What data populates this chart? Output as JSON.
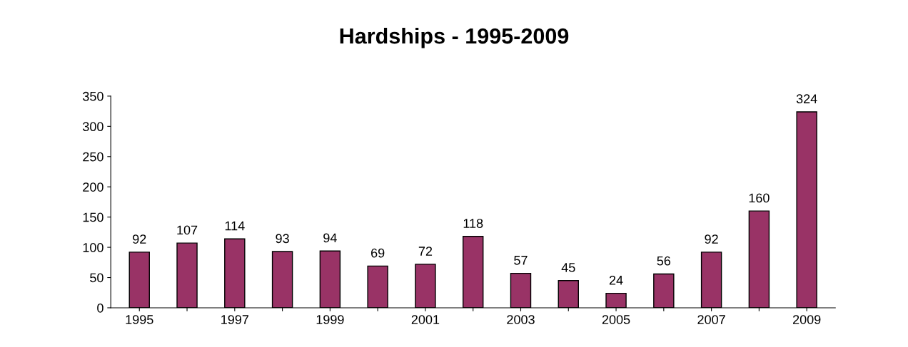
{
  "chart_data": {
    "type": "bar",
    "title": "Hardships - 1995-2009",
    "categories": [
      "1995",
      null,
      "1997",
      null,
      "1999",
      null,
      "2001",
      null,
      "2003",
      null,
      "2005",
      null,
      "2007",
      null,
      "2009"
    ],
    "values": [
      92,
      107,
      114,
      93,
      94,
      69,
      72,
      118,
      57,
      45,
      24,
      56,
      92,
      160,
      324
    ],
    "color": "#993366",
    "ylim": [
      0,
      350
    ],
    "yticks": [
      0,
      50,
      100,
      150,
      200,
      250,
      300,
      350
    ],
    "data_labels": true,
    "grid": false,
    "legend": false
  }
}
